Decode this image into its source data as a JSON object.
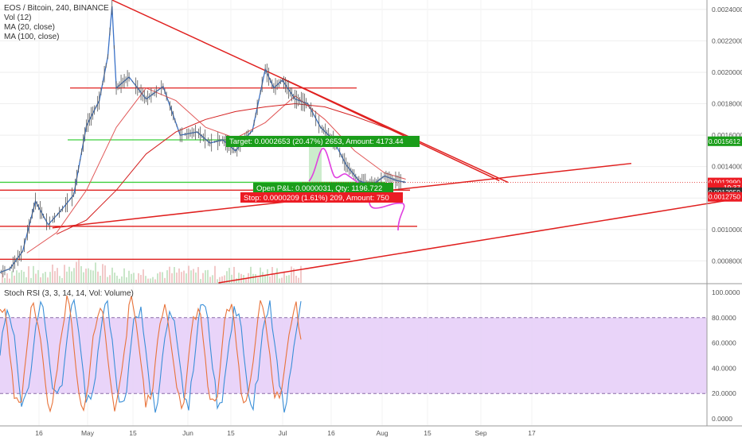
{
  "legend": {
    "symbol": "EOS / Bitcoin, 240, BINANCE",
    "vol": "Vol (12)",
    "ma20": "MA (20, close)",
    "ma100": "MA (100, close)",
    "stoch": "Stoch RSI (3, 3, 14, 14, Vol: Volume)"
  },
  "colors": {
    "price_line": "#3a72c8",
    "ma20": "#e05555",
    "ma100": "#d42020",
    "trendline": "#e0201f",
    "support_green": "#3fcf3f",
    "stoch_k": "#3a8fd8",
    "stoch_d": "#e8733a",
    "stoch_band": "#e7cff8",
    "projection": "#e040e0",
    "price_tag_green": "#1a9d1a",
    "price_tag_red": "#ec1c24",
    "price_tag_dark": "#333333"
  },
  "price_axis": {
    "ticks": [
      "0.0024000",
      "0.0022000",
      "0.0020000",
      "0.0018000",
      "0.0016000",
      "0.0014000",
      "0.0012000",
      "0.0010000",
      "0.0008000"
    ],
    "tags": [
      {
        "label": "0.0015612",
        "value": 0.0015612,
        "kind": "green"
      },
      {
        "label": "0.0012990",
        "value": 0.001299,
        "kind": "red"
      },
      {
        "label": "19:37",
        "value": 0.0012655,
        "kind": "red"
      },
      {
        "label": "0.0012959",
        "value": 0.0012365,
        "kind": "dark"
      },
      {
        "label": "0.0012750",
        "value": 0.0012075,
        "kind": "red"
      }
    ]
  },
  "stoch_axis": {
    "ticks": [
      "100.0000",
      "80.0000",
      "60.0000",
      "40.0000",
      "20.0000",
      "0.0000"
    ],
    "upper_band": 80,
    "lower_band": 20
  },
  "time_axis": {
    "labels": [
      "16",
      "May",
      "15",
      "Jun",
      "15",
      "Jul",
      "16",
      "Aug",
      "15",
      "Sep",
      "17"
    ]
  },
  "position": {
    "target": "Target: 0.0002653 (20.47%) 2653, Amount: 4173.44",
    "open_pnl": "Open P&L: 0.0000031, Qty: 1196.722",
    "stop": "Stop: 0.0000209 (1.61%) 209, Amount: 750"
  },
  "chart_data": {
    "type": "line",
    "title": "EOS / Bitcoin, 240, BINANCE",
    "xlabel": "",
    "ylabel": "",
    "x_range": [
      "2018-04-01",
      "2018-09-24"
    ],
    "ylim": [
      0.00066,
      0.00246
    ],
    "grid": true,
    "series": [
      {
        "name": "EOS / Bitcoin",
        "x": [
          "2018-04-01",
          "2018-04-05",
          "2018-04-08",
          "2018-04-11",
          "2018-04-14",
          "2018-04-17",
          "2018-04-20",
          "2018-04-23",
          "2018-04-26",
          "2018-04-28",
          "2018-04-29",
          "2018-04-30",
          "2018-05-03",
          "2018-05-07",
          "2018-05-11",
          "2018-05-15",
          "2018-05-19",
          "2018-05-22",
          "2018-05-25",
          "2018-05-28",
          "2018-05-31",
          "2018-06-01",
          "2018-06-04",
          "2018-06-06",
          "2018-06-08",
          "2018-06-11",
          "2018-06-14",
          "2018-06-17",
          "2018-06-20",
          "2018-06-23",
          "2018-06-26",
          "2018-06-29",
          "2018-07-02",
          "2018-07-05",
          "2018-07-07"
        ],
        "values": [
          0.00071,
          0.00075,
          0.00086,
          0.00118,
          0.00103,
          0.00112,
          0.00122,
          0.00166,
          0.00182,
          0.0021,
          0.00242,
          0.0019,
          0.00197,
          0.00183,
          0.00191,
          0.0016,
          0.00162,
          0.00155,
          0.00157,
          0.0015,
          0.0016,
          0.00163,
          0.00202,
          0.0019,
          0.00195,
          0.00183,
          0.0018,
          0.00165,
          0.00157,
          0.00141,
          0.00131,
          0.00128,
          0.00134,
          0.00131,
          0.0013
        ]
      },
      {
        "name": "MA (20, close)",
        "x": [
          "2018-04-09",
          "2018-04-16",
          "2018-04-23",
          "2018-04-30",
          "2018-05-07",
          "2018-05-14",
          "2018-05-21",
          "2018-05-28",
          "2018-06-04",
          "2018-06-11",
          "2018-06-18",
          "2018-06-25",
          "2018-07-02",
          "2018-07-07"
        ],
        "values": [
          0.00085,
          0.00098,
          0.00125,
          0.00165,
          0.0019,
          0.00182,
          0.00165,
          0.00158,
          0.00168,
          0.00185,
          0.0017,
          0.0015,
          0.00136,
          0.00132
        ]
      },
      {
        "name": "MA (100, close)",
        "x": [
          "2018-04-16",
          "2018-04-23",
          "2018-04-30",
          "2018-05-07",
          "2018-05-14",
          "2018-05-21",
          "2018-05-28",
          "2018-06-04",
          "2018-06-11",
          "2018-06-18",
          "2018-06-25",
          "2018-07-02",
          "2018-07-07"
        ],
        "values": [
          0.00097,
          0.00106,
          0.00125,
          0.00148,
          0.00162,
          0.0017,
          0.00175,
          0.00178,
          0.0018,
          0.00178,
          0.00172,
          0.00165,
          0.0016
        ]
      }
    ],
    "levels": [
      {
        "kind": "resistance",
        "value": 0.0019
      },
      {
        "kind": "support",
        "value": 0.00157
      },
      {
        "kind": "support",
        "value": 0.0013
      },
      {
        "kind": "resistance",
        "value": 0.00125
      },
      {
        "kind": "support",
        "value": 0.00102
      },
      {
        "kind": "support",
        "value": 0.00081
      }
    ],
    "trendlines": [
      {
        "kind": "resistance",
        "from": [
          "2018-04-29",
          0.00246
        ],
        "to": [
          "2018-07-31",
          0.0013
        ]
      },
      {
        "kind": "resistance",
        "from": [
          "2018-06-08",
          0.00196
        ],
        "to": [
          "2018-07-29",
          0.00131
        ]
      },
      {
        "kind": "support",
        "from": [
          "2018-04-15",
          0.00101
        ],
        "to": [
          "2018-08-29",
          0.00142
        ]
      },
      {
        "kind": "support",
        "from": [
          "2018-05-24",
          0.00066
        ],
        "to": [
          "2018-09-24",
          0.0012
        ]
      }
    ],
    "stoch_rsi": {
      "ylim": [
        0,
        100
      ],
      "upper_band": 80,
      "lower_band": 20
    }
  }
}
